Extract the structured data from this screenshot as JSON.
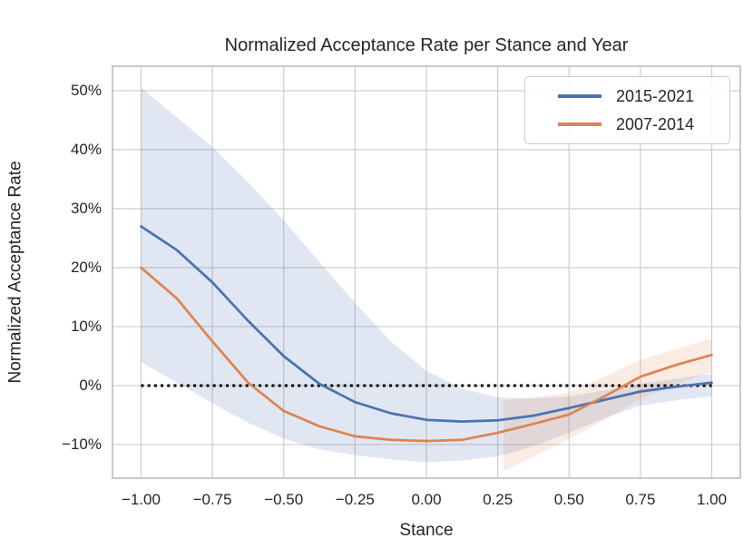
{
  "chart_data": {
    "type": "line",
    "title": "Normalized Acceptance Rate per Stance and Year",
    "xlabel": "Stance",
    "ylabel": "Normalized Acceptance Rate",
    "grid": true,
    "legend_position": "upper right",
    "xlim": [
      -1.1,
      1.1
    ],
    "ylim_pct": [
      -15.7,
      54.15
    ],
    "xticks": [
      -1.0,
      -0.75,
      -0.5,
      -0.25,
      0.0,
      0.25,
      0.5,
      0.75,
      1.0
    ],
    "xtick_labels": [
      "−1.00",
      "−0.75",
      "−0.50",
      "−0.25",
      "0.00",
      "0.25",
      "0.50",
      "0.75",
      "1.00"
    ],
    "yticks": [
      50,
      40,
      30,
      20,
      10,
      0,
      -10
    ],
    "ytick_labels": [
      "50%",
      "40%",
      "30%",
      "20%",
      "10%",
      "0%",
      "−10%"
    ],
    "colors": {
      "grid": "#cdcdcd",
      "spine": "#b3b3b3",
      "text": "#262626",
      "background": "#ffffff",
      "zero_line": "#000000"
    },
    "zero_line": {
      "y_pct": 0,
      "x_start": -1.0,
      "x_end": 1.0,
      "style": "dotted",
      "color": "#000000"
    },
    "x": [
      -1.0,
      -0.875,
      -0.75,
      -0.625,
      -0.5,
      -0.375,
      -0.25,
      -0.125,
      0.0,
      0.125,
      0.25,
      0.375,
      0.5,
      0.625,
      0.75,
      0.875,
      1.0
    ],
    "series": [
      {
        "name": "2015-2021",
        "color": "#4C72B0",
        "band_opacity": 0.17,
        "values_pct": [
          27.0,
          23.0,
          17.5,
          11.0,
          5.0,
          0.3,
          -2.8,
          -4.7,
          -5.8,
          -6.1,
          -5.9,
          -5.1,
          -3.8,
          -2.4,
          -1.0,
          -0.2,
          0.5
        ],
        "band_hi_pct": [
          50.5,
          45.5,
          40.5,
          34.5,
          28.0,
          21.0,
          14.0,
          7.5,
          2.5,
          -0.5,
          -2.0,
          -2.2,
          -1.8,
          -0.8,
          0.3,
          1.2,
          2.0
        ],
        "band_lo_pct": [
          4.0,
          0.5,
          -3.0,
          -6.3,
          -9.0,
          -10.8,
          -11.8,
          -12.5,
          -13.0,
          -12.7,
          -12.0,
          -10.3,
          -8.0,
          -5.5,
          -3.4,
          -2.5,
          -1.8
        ]
      },
      {
        "name": "2007-2014",
        "color": "#DD8452",
        "band_opacity": 0.16,
        "values_pct": [
          20.0,
          14.8,
          7.5,
          0.5,
          -4.3,
          -6.9,
          -8.6,
          -9.2,
          -9.4,
          -9.2,
          -8.0,
          -6.5,
          -4.9,
          -1.8,
          1.5,
          3.5,
          5.2
        ],
        "band_x": [
          0.27,
          0.375,
          0.5,
          0.625,
          0.75,
          0.875,
          1.0
        ],
        "band_hi_pct": [
          -2.6,
          -2.0,
          -1.2,
          1.6,
          4.3,
          6.2,
          8.0
        ],
        "band_lo_pct": [
          -14.5,
          -12.0,
          -9.0,
          -5.8,
          -2.3,
          0.2,
          2.3
        ]
      }
    ]
  }
}
